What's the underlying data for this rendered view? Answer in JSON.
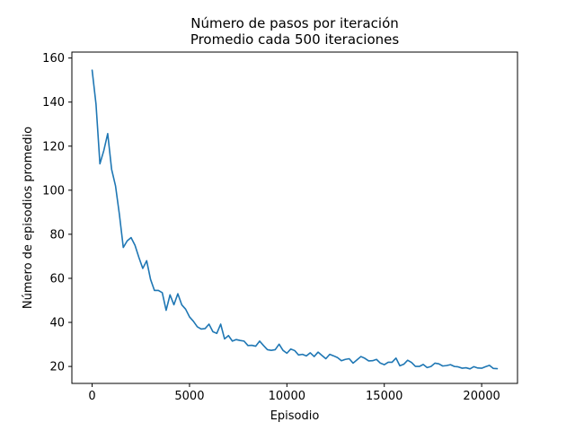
{
  "chart_data": {
    "type": "line",
    "title_line1": "Número de pasos por iteración",
    "title_line2": "Promedio cada 500 iteraciones",
    "xlabel": "Episodio",
    "ylabel": "Número de episodios promedio",
    "xlim": [
      -1040,
      21840
    ],
    "ylim": [
      12.3,
      162.7
    ],
    "xticks": [
      0,
      5000,
      10000,
      15000,
      20000
    ],
    "yticks": [
      20,
      40,
      60,
      80,
      100,
      120,
      140,
      160
    ],
    "line_color": "#1f77b4",
    "series": [
      {
        "x": [
          0,
          200,
          400,
          600,
          800,
          1000,
          1200,
          1400,
          1600,
          1800,
          2000,
          2200,
          2400,
          2600,
          2800,
          3000,
          3200,
          3400,
          3600,
          3800,
          4000,
          4200,
          4400,
          4600,
          4800,
          5000,
          5200,
          5400,
          5600,
          5800,
          6000,
          6200,
          6400,
          6600,
          6800,
          7000,
          7200,
          7400,
          7600,
          7800,
          8000,
          8200,
          8400,
          8600,
          8800,
          9000,
          9200,
          9400,
          9600,
          9800,
          10000,
          10200,
          10400,
          10600,
          10800,
          11000,
          11200,
          11400,
          11600,
          11800,
          12000,
          12200,
          12400,
          12600,
          12800,
          13000,
          13200,
          13400,
          13600,
          13800,
          14000,
          14200,
          14400,
          14600,
          14800,
          15000,
          15200,
          15400,
          15600,
          15800,
          16000,
          16200,
          16400,
          16600,
          16800,
          17000,
          17200,
          17400,
          17600,
          17800,
          18000,
          18200,
          18400,
          18600,
          18800,
          19000,
          19200,
          19400,
          19600,
          19800,
          20000,
          20200,
          20400,
          20600,
          20800
        ],
        "values": [
          154.5,
          139,
          112,
          118,
          125.7,
          109.5,
          102,
          89,
          74,
          77,
          78.5,
          75,
          69.5,
          64.5,
          68,
          59.5,
          54.5,
          54.5,
          53.5,
          45.5,
          52.5,
          48,
          53,
          48,
          46,
          42.5,
          40.5,
          38,
          37,
          37.2,
          39.2,
          35.8,
          35,
          39.2,
          32.5,
          34,
          31.5,
          32.2,
          31.8,
          31.5,
          29.5,
          29.6,
          29.2,
          31.5,
          29.5,
          27.6,
          27.3,
          27.6,
          30.1,
          27.3,
          26,
          27.9,
          27.2,
          25.2,
          25.5,
          24.8,
          26.2,
          24.5,
          26.5,
          25,
          23.5,
          25.5,
          24.8,
          24,
          22.6,
          23.2,
          23.5,
          21.5,
          23,
          24.5,
          23.7,
          22.5,
          22.6,
          23.2,
          21.5,
          20.8,
          21.9,
          21.9,
          23.8,
          20.3,
          21,
          22.8,
          21.8,
          20,
          20,
          20.9,
          19.5,
          20,
          21.5,
          21.2,
          20.2,
          20.4,
          20.8,
          20,
          19.8,
          19.2,
          19.4,
          18.9,
          19.9,
          19.3,
          19.2,
          19.9,
          20.5,
          19.1,
          19
        ]
      }
    ]
  }
}
